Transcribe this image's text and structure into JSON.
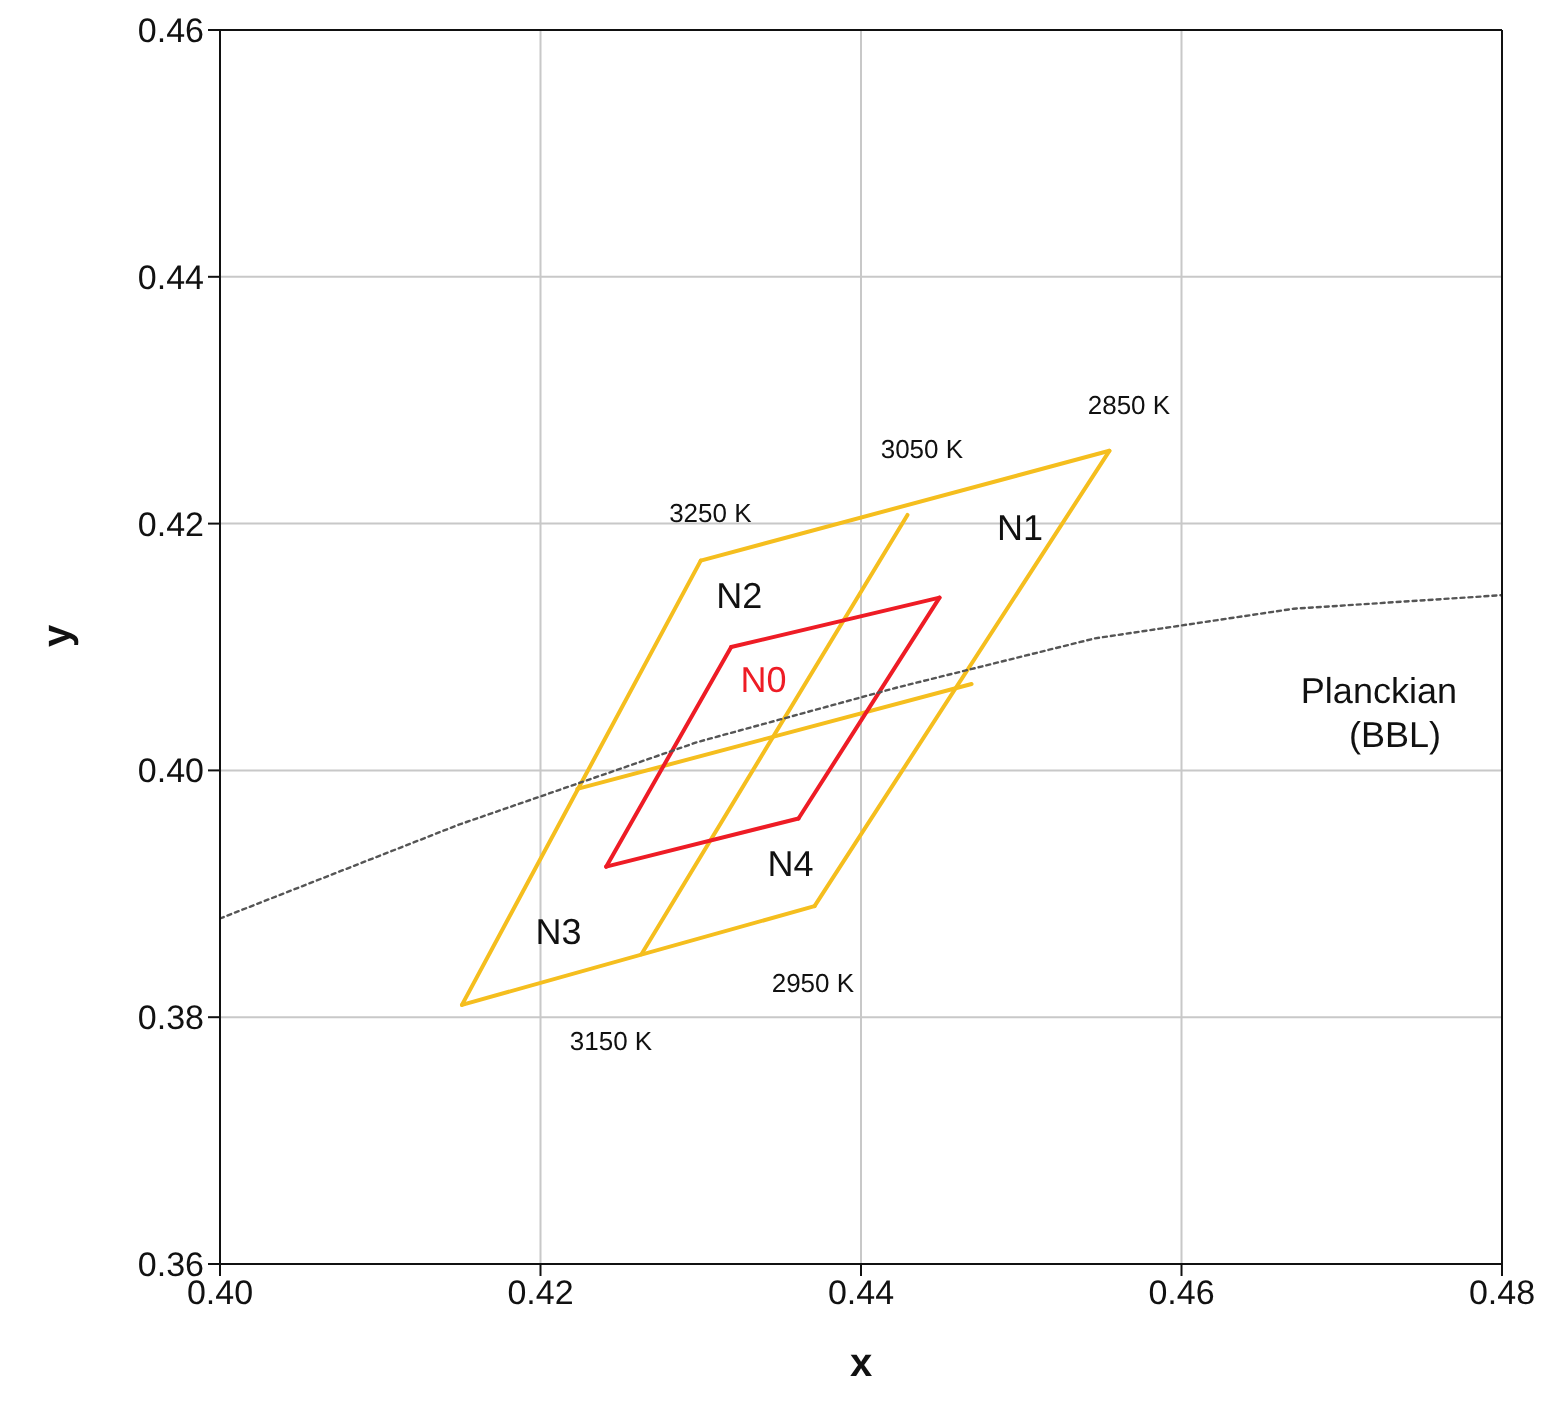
{
  "chart_data": {
    "type": "line",
    "xlabel": "x",
    "ylabel": "y",
    "xlim": [
      0.4,
      0.48
    ],
    "ylim": [
      0.36,
      0.46
    ],
    "xticks": [
      {
        "value": 0.4,
        "label": "0.40"
      },
      {
        "value": 0.42,
        "label": "0.42"
      },
      {
        "value": 0.44,
        "label": "0.44"
      },
      {
        "value": 0.46,
        "label": "0.46"
      },
      {
        "value": 0.48,
        "label": "0.48"
      }
    ],
    "yticks": [
      {
        "value": 0.36,
        "label": "0.36"
      },
      {
        "value": 0.38,
        "label": "0.38"
      },
      {
        "value": 0.4,
        "label": "0.40"
      },
      {
        "value": 0.42,
        "label": "0.42"
      },
      {
        "value": 0.44,
        "label": "0.44"
      },
      {
        "value": 0.46,
        "label": "0.46"
      }
    ],
    "grid": true,
    "marker": "none",
    "series": [
      {
        "color": "#f5be1e",
        "line_style": "solid",
        "x": [
          0.43,
          0.4555
        ],
        "values": [
          0.417,
          0.4259
        ]
      },
      {
        "color": "#f5be1e",
        "line_style": "solid",
        "x": [
          0.4371,
          0.4555
        ],
        "values": [
          0.389,
          0.4259
        ]
      },
      {
        "color": "#f5be1e",
        "line_style": "solid",
        "x": [
          0.4151,
          0.4371
        ],
        "values": [
          0.381,
          0.389
        ]
      },
      {
        "color": "#f5be1e",
        "line_style": "solid",
        "x": [
          0.4151,
          0.43
        ],
        "values": [
          0.381,
          0.417
        ]
      },
      {
        "color": "#f5be1e",
        "line_style": "solid",
        "x": [
          0.4263,
          0.4429
        ],
        "values": [
          0.3851,
          0.4207
        ]
      },
      {
        "color": "#f5be1e",
        "line_style": "solid",
        "x": [
          0.4223,
          0.4469
        ],
        "values": [
          0.3985,
          0.407
        ]
      },
      {
        "color": "#ee1c25",
        "line_style": "solid",
        "x": [
          0.4319,
          0.4449
        ],
        "values": [
          0.41,
          0.414
        ]
      },
      {
        "color": "#ee1c25",
        "line_style": "solid",
        "x": [
          0.4361,
          0.4449
        ],
        "values": [
          0.3961,
          0.414
        ]
      },
      {
        "color": "#ee1c25",
        "line_style": "solid",
        "x": [
          0.4241,
          0.4361
        ],
        "values": [
          0.3922,
          0.3961
        ]
      },
      {
        "color": "#ee1c25",
        "line_style": "solid",
        "x": [
          0.4241,
          0.4319
        ],
        "values": [
          0.3922,
          0.41
        ]
      },
      {
        "color": "#555555",
        "line_style": "dotted",
        "x": [
          0.4,
          0.4149,
          0.4298,
          0.4422,
          0.4546,
          0.467,
          0.48
        ],
        "values": [
          0.388,
          0.3956,
          0.4023,
          0.4067,
          0.4107,
          0.4131,
          0.4142
        ]
      }
    ],
    "annotations": [
      "3250 K",
      "3050 K",
      "2850 K",
      "2950 K",
      "3150 K",
      "N1",
      "N2",
      "N0",
      "N4",
      "N3",
      "Planckian\n(BBL)"
    ]
  }
}
